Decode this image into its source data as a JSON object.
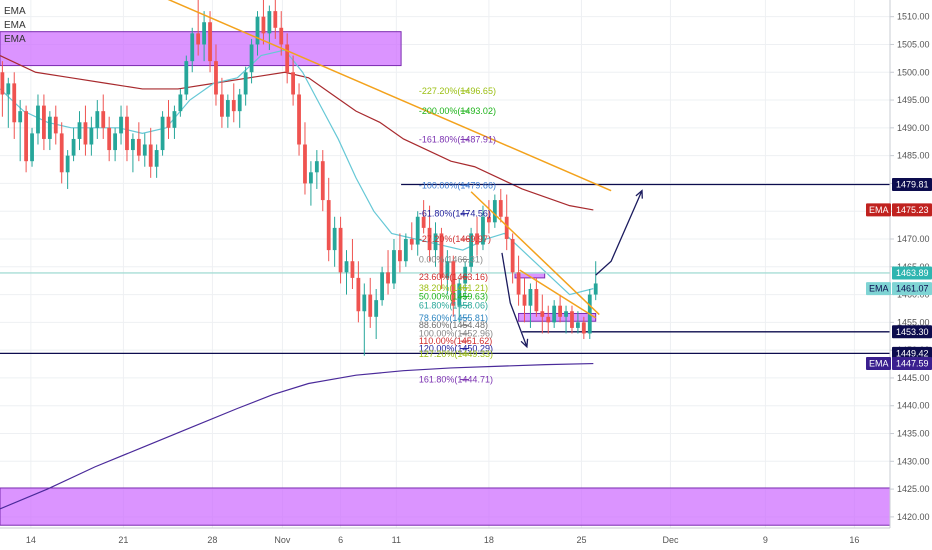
{
  "chart_data": {
    "type": "candlestick",
    "ylim": [
      1418,
      1513
    ],
    "xlim": [
      0,
      75
    ],
    "y_ticks": [
      1420,
      1425,
      1430,
      1435,
      1440,
      1445,
      1450,
      1455,
      1460,
      1465,
      1470,
      1475,
      1480,
      1485,
      1490,
      1495,
      1500,
      1505,
      1510
    ],
    "y_tick_labels": [
      "1420.00",
      "1425.00",
      "1430.00",
      "1435.00",
      "1440.00",
      "1445.00",
      "1450.00",
      "1455.00",
      "1460.00",
      "1465.00",
      "1470.00",
      "1475.00",
      "1480.00",
      "1485.00",
      "1490.00",
      "1495.00",
      "1500.00",
      "1505.00",
      "1510.00"
    ],
    "x_ticks": [
      {
        "label": "14",
        "x": 2.6
      },
      {
        "label": "21",
        "x": 10.4
      },
      {
        "label": "28",
        "x": 17.9
      },
      {
        "label": "Nov",
        "x": 23.8
      },
      {
        "label": "6",
        "x": 28.7
      },
      {
        "label": "11",
        "x": 33.4
      },
      {
        "label": "18",
        "x": 41.2
      },
      {
        "label": "25",
        "x": 49.0
      },
      {
        "label": "Dec",
        "x": 56.5
      },
      {
        "label": "9",
        "x": 64.5
      },
      {
        "label": "16",
        "x": 72.0
      }
    ],
    "legend_labels": [
      "EMA",
      "EMA",
      "EMA"
    ],
    "candles": [
      [
        0.2,
        1500,
        1502,
        1492,
        1496
      ],
      [
        0.7,
        1496,
        1499,
        1490,
        1498
      ],
      [
        1.2,
        1498,
        1500,
        1488,
        1491
      ],
      [
        1.7,
        1491,
        1495,
        1484,
        1493
      ],
      [
        2.2,
        1493,
        1494,
        1482,
        1484
      ],
      [
        2.7,
        1484,
        1490,
        1483,
        1489
      ],
      [
        3.2,
        1489,
        1496,
        1487,
        1494
      ],
      [
        3.7,
        1494,
        1496,
        1486,
        1488
      ],
      [
        4.2,
        1488,
        1493,
        1486,
        1492
      ],
      [
        4.7,
        1492,
        1494,
        1487,
        1489
      ],
      [
        5.2,
        1489,
        1491,
        1480,
        1482
      ],
      [
        5.7,
        1482,
        1486,
        1479,
        1485
      ],
      [
        6.2,
        1485,
        1490,
        1484,
        1488
      ],
      [
        6.7,
        1488,
        1493,
        1486,
        1491
      ],
      [
        7.2,
        1491,
        1494,
        1485,
        1487
      ],
      [
        7.7,
        1487,
        1492,
        1485,
        1490
      ],
      [
        8.2,
        1490,
        1495,
        1488,
        1493
      ],
      [
        8.7,
        1493,
        1496,
        1488,
        1490
      ],
      [
        9.2,
        1490,
        1492,
        1484,
        1486
      ],
      [
        9.7,
        1486,
        1490,
        1484,
        1489
      ],
      [
        10.2,
        1489,
        1494,
        1487,
        1492
      ],
      [
        10.7,
        1492,
        1494,
        1484,
        1486
      ],
      [
        11.2,
        1486,
        1489,
        1482,
        1488
      ],
      [
        11.7,
        1488,
        1491,
        1484,
        1485
      ],
      [
        12.2,
        1485,
        1489,
        1483,
        1487
      ],
      [
        12.7,
        1487,
        1490,
        1481,
        1483
      ],
      [
        13.2,
        1483,
        1487,
        1481,
        1486
      ],
      [
        13.7,
        1486,
        1493,
        1485,
        1492
      ],
      [
        14.2,
        1492,
        1495,
        1488,
        1490
      ],
      [
        14.7,
        1490,
        1494,
        1488,
        1493
      ],
      [
        15.2,
        1493,
        1497,
        1492,
        1496
      ],
      [
        15.7,
        1496,
        1503,
        1495,
        1502
      ],
      [
        16.2,
        1502,
        1508,
        1500,
        1507
      ],
      [
        16.7,
        1507,
        1513,
        1503,
        1505
      ],
      [
        17.2,
        1505,
        1511,
        1502,
        1509
      ],
      [
        17.7,
        1509,
        1511,
        1500,
        1502
      ],
      [
        18.2,
        1502,
        1505,
        1494,
        1496
      ],
      [
        18.7,
        1496,
        1499,
        1490,
        1492
      ],
      [
        19.2,
        1492,
        1496,
        1490,
        1495
      ],
      [
        19.7,
        1495,
        1498,
        1491,
        1493
      ],
      [
        20.2,
        1493,
        1497,
        1490,
        1496
      ],
      [
        20.7,
        1496,
        1501,
        1494,
        1500
      ],
      [
        21.2,
        1500,
        1506,
        1498,
        1505
      ],
      [
        21.7,
        1505,
        1511,
        1503,
        1510
      ],
      [
        22.2,
        1510,
        1513,
        1505,
        1507
      ],
      [
        22.7,
        1507,
        1512,
        1504,
        1511
      ],
      [
        23.2,
        1511,
        1513,
        1506,
        1508
      ],
      [
        23.7,
        1508,
        1511,
        1503,
        1505
      ],
      [
        24.2,
        1505,
        1507,
        1498,
        1500
      ],
      [
        24.7,
        1500,
        1503,
        1494,
        1496
      ],
      [
        25.2,
        1496,
        1498,
        1485,
        1487
      ],
      [
        25.7,
        1487,
        1491,
        1478,
        1480
      ],
      [
        26.2,
        1480,
        1484,
        1476,
        1482
      ],
      [
        26.7,
        1482,
        1486,
        1479,
        1484
      ],
      [
        27.2,
        1484,
        1486,
        1475,
        1477
      ],
      [
        27.7,
        1477,
        1481,
        1466,
        1468
      ],
      [
        28.2,
        1468,
        1474,
        1465,
        1472
      ],
      [
        28.7,
        1472,
        1474,
        1462,
        1464
      ],
      [
        29.2,
        1464,
        1468,
        1460,
        1466
      ],
      [
        29.7,
        1466,
        1470,
        1461,
        1463
      ],
      [
        30.2,
        1463,
        1466,
        1455,
        1457
      ],
      [
        30.7,
        1457,
        1462,
        1449,
        1460
      ],
      [
        31.2,
        1460,
        1463,
        1454,
        1456
      ],
      [
        31.7,
        1456,
        1461,
        1452,
        1459
      ],
      [
        32.2,
        1459,
        1465,
        1458,
        1464
      ],
      [
        32.7,
        1464,
        1468,
        1460,
        1462
      ],
      [
        33.2,
        1462,
        1470,
        1461,
        1468
      ],
      [
        33.7,
        1468,
        1471,
        1464,
        1466
      ],
      [
        34.2,
        1466,
        1471,
        1465,
        1470
      ],
      [
        34.7,
        1470,
        1473,
        1468,
        1469
      ],
      [
        35.2,
        1469,
        1475,
        1467,
        1474
      ],
      [
        35.7,
        1474,
        1477,
        1471,
        1472
      ],
      [
        36.2,
        1472,
        1476,
        1466,
        1468
      ],
      [
        36.7,
        1468,
        1473,
        1465,
        1471
      ],
      [
        37.2,
        1471,
        1472,
        1461,
        1463
      ],
      [
        37.7,
        1463,
        1468,
        1460,
        1466
      ],
      [
        38.2,
        1466,
        1467,
        1456,
        1458
      ],
      [
        38.7,
        1458,
        1463,
        1455,
        1462
      ],
      [
        39.2,
        1462,
        1466,
        1459,
        1465
      ],
      [
        39.7,
        1465,
        1472,
        1464,
        1471
      ],
      [
        40.2,
        1471,
        1474,
        1467,
        1469
      ],
      [
        40.7,
        1469,
        1476,
        1468,
        1474
      ],
      [
        41.2,
        1474,
        1477,
        1471,
        1473
      ],
      [
        41.7,
        1473,
        1478,
        1472,
        1477
      ],
      [
        42.2,
        1477,
        1479,
        1473,
        1474
      ],
      [
        42.7,
        1474,
        1478,
        1468,
        1470
      ],
      [
        43.2,
        1470,
        1471,
        1462,
        1464
      ],
      [
        43.7,
        1464,
        1467,
        1458,
        1460
      ],
      [
        44.2,
        1460,
        1463,
        1455,
        1458
      ],
      [
        44.7,
        1458,
        1462,
        1454,
        1461
      ],
      [
        45.2,
        1461,
        1463,
        1456,
        1457
      ],
      [
        45.7,
        1457,
        1460,
        1453,
        1456
      ],
      [
        46.2,
        1456,
        1458,
        1453,
        1455
      ],
      [
        46.7,
        1455,
        1459,
        1454,
        1458
      ],
      [
        47.2,
        1458,
        1460,
        1455,
        1456
      ],
      [
        47.7,
        1456,
        1458,
        1453,
        1457
      ],
      [
        48.2,
        1457,
        1458,
        1453,
        1454
      ],
      [
        48.7,
        1454,
        1457,
        1453,
        1455
      ],
      [
        49.2,
        1455,
        1456,
        1452,
        1453
      ],
      [
        49.7,
        1453,
        1461,
        1452,
        1460
      ],
      [
        50.2,
        1460,
        1466,
        1459,
        1462
      ]
    ],
    "ema_fast": [
      [
        0,
        1497
      ],
      [
        2,
        1493
      ],
      [
        4,
        1491
      ],
      [
        6,
        1490
      ],
      [
        8,
        1490
      ],
      [
        10,
        1490
      ],
      [
        12,
        1489
      ],
      [
        14,
        1490
      ],
      [
        16,
        1495
      ],
      [
        18,
        1498
      ],
      [
        20,
        1499
      ],
      [
        22,
        1503
      ],
      [
        24,
        1504
      ],
      [
        25.5,
        1500
      ],
      [
        27,
        1494
      ],
      [
        28.5,
        1488
      ],
      [
        30,
        1481
      ],
      [
        31.5,
        1475
      ],
      [
        33,
        1471
      ],
      [
        35,
        1470
      ],
      [
        37,
        1469
      ],
      [
        39,
        1468
      ],
      [
        41,
        1470
      ],
      [
        42.5,
        1471
      ],
      [
        44,
        1468
      ],
      [
        46,
        1464
      ],
      [
        48,
        1460
      ],
      [
        50,
        1461.07
      ]
    ],
    "ema_mid": [
      [
        0,
        1503
      ],
      [
        3,
        1500
      ],
      [
        6,
        1499
      ],
      [
        9,
        1498
      ],
      [
        12,
        1497
      ],
      [
        15,
        1497
      ],
      [
        18,
        1498
      ],
      [
        21,
        1499
      ],
      [
        24,
        1500
      ],
      [
        26,
        1499
      ],
      [
        28,
        1496
      ],
      [
        30,
        1493
      ],
      [
        32,
        1491
      ],
      [
        34,
        1488
      ],
      [
        36,
        1486
      ],
      [
        38,
        1484
      ],
      [
        40,
        1483
      ],
      [
        42,
        1481
      ],
      [
        44,
        1479
      ],
      [
        46,
        1477.5
      ],
      [
        48,
        1476
      ],
      [
        50,
        1475.23
      ]
    ],
    "ema_slow": [
      [
        -0.5,
        1421
      ],
      [
        4,
        1425
      ],
      [
        8,
        1429
      ],
      [
        12,
        1432.5
      ],
      [
        16,
        1436
      ],
      [
        20,
        1439.5
      ],
      [
        23,
        1442
      ],
      [
        26,
        1444
      ],
      [
        30,
        1445.5
      ],
      [
        34,
        1446.3
      ],
      [
        38,
        1446.8
      ],
      [
        42,
        1447.1
      ],
      [
        46,
        1447.4
      ],
      [
        50,
        1447.59
      ]
    ],
    "zones": [
      {
        "x0": 0,
        "x1": 33.8,
        "y0": 1501.2,
        "y1": 1507.3
      },
      {
        "x0": -1,
        "x1": 75,
        "y0": 1418.5,
        "y1": 1425.2
      },
      {
        "x0": 43.4,
        "x1": 45.9,
        "y0": 1463.0,
        "y1": 1463.9
      },
      {
        "x0": 43.7,
        "x1": 50.2,
        "y0": 1455.2,
        "y1": 1456.6
      }
    ],
    "hlines": [
      {
        "y": 1479.81,
        "x0": 33.8,
        "x1": 75,
        "color": "#0c0c4e"
      },
      {
        "y": 1453.3,
        "x0": 44.0,
        "x1": 75,
        "color": "#0c0c4e"
      },
      {
        "y": 1449.42,
        "x0": 0,
        "x1": 75,
        "color": "#0c0c4e"
      },
      {
        "y": 1463.89,
        "x0": 0,
        "x1": 75,
        "color": "#a8ddd6"
      }
    ],
    "trendlines": [
      {
        "points": [
          [
            13.2,
            1514
          ],
          [
            51.5,
            1478.7
          ]
        ],
        "color": "#f3a21c"
      },
      {
        "points": [
          [
            39.7,
            1478.5
          ],
          [
            50.5,
            1456.4
          ]
        ],
        "color": "#f3a21c"
      },
      {
        "points": [
          [
            43.8,
            1464.4
          ],
          [
            50.2,
            1455.8
          ]
        ],
        "color": "#f3a21c"
      }
    ],
    "arrows": [
      {
        "points": [
          [
            42.3,
            1467.5
          ],
          [
            43.0,
            1458.5
          ],
          [
            44.4,
            1450.6
          ]
        ],
        "color": "#1b1b5e"
      },
      {
        "points": [
          [
            50.2,
            1463.5
          ],
          [
            51.5,
            1466.0
          ],
          [
            54.1,
            1478.7
          ]
        ],
        "color": "#1b1b5e"
      }
    ],
    "fib_levels": [
      {
        "label": "-227.20%(1496.65)",
        "y": 1496.65,
        "color": "#9bbf12"
      },
      {
        "label": "-200.00%(1493.02)",
        "y": 1493.02,
        "color": "#1db31a"
      },
      {
        "label": "-161.80%(1487.91)",
        "y": 1487.91,
        "color": "#7b32b1"
      },
      {
        "label": "-100.00%(1479.66)",
        "y": 1479.66,
        "color": "#3c7bd1"
      },
      {
        "label": "-61.80%(1474.56)",
        "y": 1474.56,
        "color": "#1e1e9a"
      },
      {
        "label": "-27.20%(1469.97)",
        "y": 1469.97,
        "color": "#d12f2f"
      },
      {
        "label": "0.00%(1466.31)",
        "y": 1466.31,
        "color": "#888888"
      },
      {
        "label": "23.60%(1463.16)",
        "y": 1463.16,
        "color": "#d12f2f"
      },
      {
        "label": "38.20%(1461.21)",
        "y": 1461.21,
        "color": "#9bbf12"
      },
      {
        "label": "50.00%(1459.63)",
        "y": 1459.63,
        "color": "#1db31a"
      },
      {
        "label": "61.80%(1458.06)",
        "y": 1458.06,
        "color": "#2aa89a"
      },
      {
        "label": "78.60%(1455.81)",
        "y": 1455.81,
        "color": "#2e86c1"
      },
      {
        "label": "88.60%(1454.48)",
        "y": 1454.48,
        "color": "#6e6e6e"
      },
      {
        "label": "100.00%(1452.96)",
        "y": 1452.96,
        "color": "#888888"
      },
      {
        "label": "110.00%(1451.62)",
        "y": 1451.62,
        "color": "#d12f2f"
      },
      {
        "label": "120.00%(1450.29)",
        "y": 1450.29,
        "color": "#1e1e9a"
      },
      {
        "label": "127.20%(1449.33)",
        "y": 1449.33,
        "color": "#9bbf12"
      },
      {
        "label": "161.80%(1444.71)",
        "y": 1444.71,
        "color": "#7b32b1"
      }
    ],
    "price_tags": [
      {
        "text": "1479.81",
        "y": 1479.81,
        "bg": "#0c0c4e",
        "fg": "#ffffff",
        "name": ""
      },
      {
        "text": "1475.23",
        "y": 1475.23,
        "bg": "#c0221f",
        "fg": "#ffffff",
        "name": "EMA"
      },
      {
        "text": "1463.89",
        "y": 1463.89,
        "bg": "#2fb5b0",
        "fg": "#ffffff",
        "name": ""
      },
      {
        "text": "1461.07",
        "y": 1461.07,
        "bg": "#7fd4d4",
        "fg": "#0c0c4e",
        "name": "EMA"
      },
      {
        "text": "1453.30",
        "y": 1453.3,
        "bg": "#0c0c4e",
        "fg": "#ffffff",
        "name": ""
      },
      {
        "text": "1449.42",
        "y": 1449.42,
        "bg": "#0c0c4e",
        "fg": "#ffffff",
        "name": ""
      },
      {
        "text": "1447.59",
        "y": 1447.59,
        "bg": "#3a1f8f",
        "fg": "#ffffff",
        "name": "EMA"
      }
    ],
    "colors": {
      "up": "#26a69a",
      "down": "#ef5350",
      "ema_fast": "#66c8d6",
      "ema_mid": "#a82a2e",
      "ema_slow": "#4a2a9a",
      "zone": "#cc66ff",
      "grid": "#eef0f3"
    },
    "grid": true
  }
}
